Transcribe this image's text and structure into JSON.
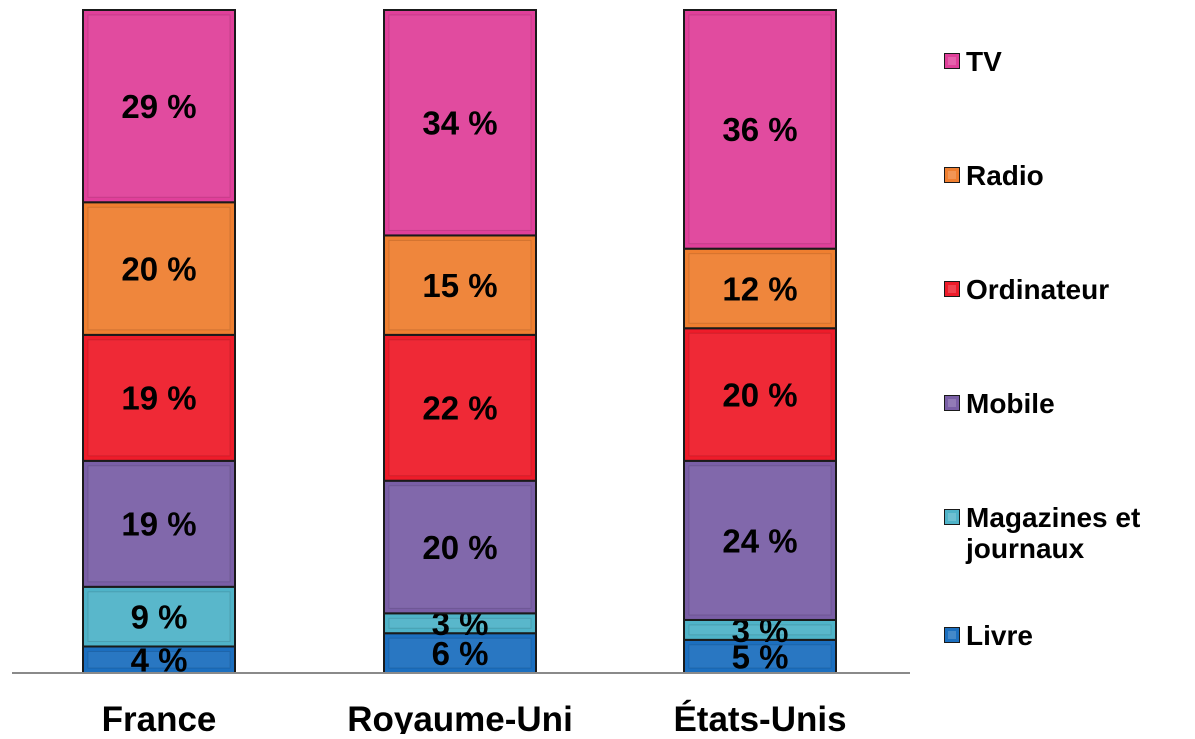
{
  "chart_data": {
    "type": "bar",
    "stacked": true,
    "normalized_percent": true,
    "categories": [
      "France",
      "Royaume-Uni",
      "États-Unis"
    ],
    "series": [
      {
        "name": "Livre",
        "values": [
          4,
          6,
          5
        ],
        "labels": [
          "4 %",
          "6 %",
          "5 %"
        ],
        "color": "#1c6fbf"
      },
      {
        "name": "Magazines et journaux",
        "values": [
          9,
          3,
          3
        ],
        "labels": [
          "9 %",
          "3 %",
          "3 %"
        ],
        "color": "#4fb3c8"
      },
      {
        "name": "Mobile",
        "values": [
          19,
          20,
          24
        ],
        "labels": [
          "19 %",
          "20 %",
          "24 %"
        ],
        "color": "#7a5fa6"
      },
      {
        "name": "Ordinateur",
        "values": [
          19,
          22,
          20
        ],
        "labels": [
          "19 %",
          "22 %",
          "20 %"
        ],
        "color": "#ee1c2a"
      },
      {
        "name": "Radio",
        "values": [
          20,
          15,
          12
        ],
        "labels": [
          "20 %",
          "15 %",
          "12 %"
        ],
        "color": "#ef7f30"
      },
      {
        "name": "TV",
        "values": [
          29,
          34,
          36
        ],
        "labels": [
          "29 %",
          "34 %",
          "36 %"
        ],
        "color": "#e0409a"
      }
    ],
    "legend_order": [
      "TV",
      "Radio",
      "Ordinateur",
      "Mobile",
      "Magazines et journaux",
      "Livre"
    ],
    "legend_labels": [
      "TV",
      "Radio",
      "Ordinateur",
      "Mobile",
      "Magazines et\njournaux",
      "Livre"
    ],
    "legend_position": "right",
    "title": "",
    "xlabel": "",
    "ylabel": "",
    "ylim": [
      0,
      100
    ],
    "grid": false
  }
}
